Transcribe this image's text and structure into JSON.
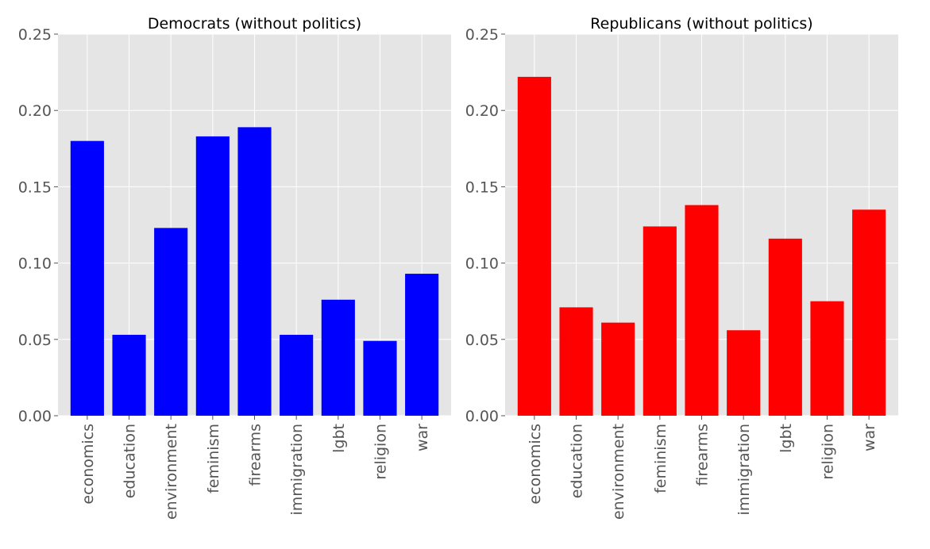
{
  "chart_data": [
    {
      "type": "bar",
      "title": "Democrats (without politics)",
      "xlabel": "",
      "ylabel": "",
      "categories": [
        "economics",
        "education",
        "environment",
        "feminism",
        "firearms",
        "immigration",
        "lgbt",
        "religion",
        "war"
      ],
      "values": [
        0.18,
        0.053,
        0.123,
        0.183,
        0.189,
        0.053,
        0.076,
        0.049,
        0.093
      ],
      "ylim": [
        0,
        0.25
      ],
      "yticks": [
        "0.00",
        "0.05",
        "0.10",
        "0.15",
        "0.20",
        "0.25"
      ],
      "bar_color": "#0000ff",
      "grid": true
    },
    {
      "type": "bar",
      "title": "Republicans (without politics)",
      "xlabel": "",
      "ylabel": "",
      "categories": [
        "economics",
        "education",
        "environment",
        "feminism",
        "firearms",
        "immigration",
        "lgbt",
        "religion",
        "war"
      ],
      "values": [
        0.222,
        0.071,
        0.061,
        0.124,
        0.138,
        0.056,
        0.116,
        0.075,
        0.135
      ],
      "ylim": [
        0,
        0.25
      ],
      "yticks": [
        "0.00",
        "0.05",
        "0.10",
        "0.15",
        "0.20",
        "0.25"
      ],
      "bar_color": "#ff0000",
      "grid": true
    }
  ]
}
